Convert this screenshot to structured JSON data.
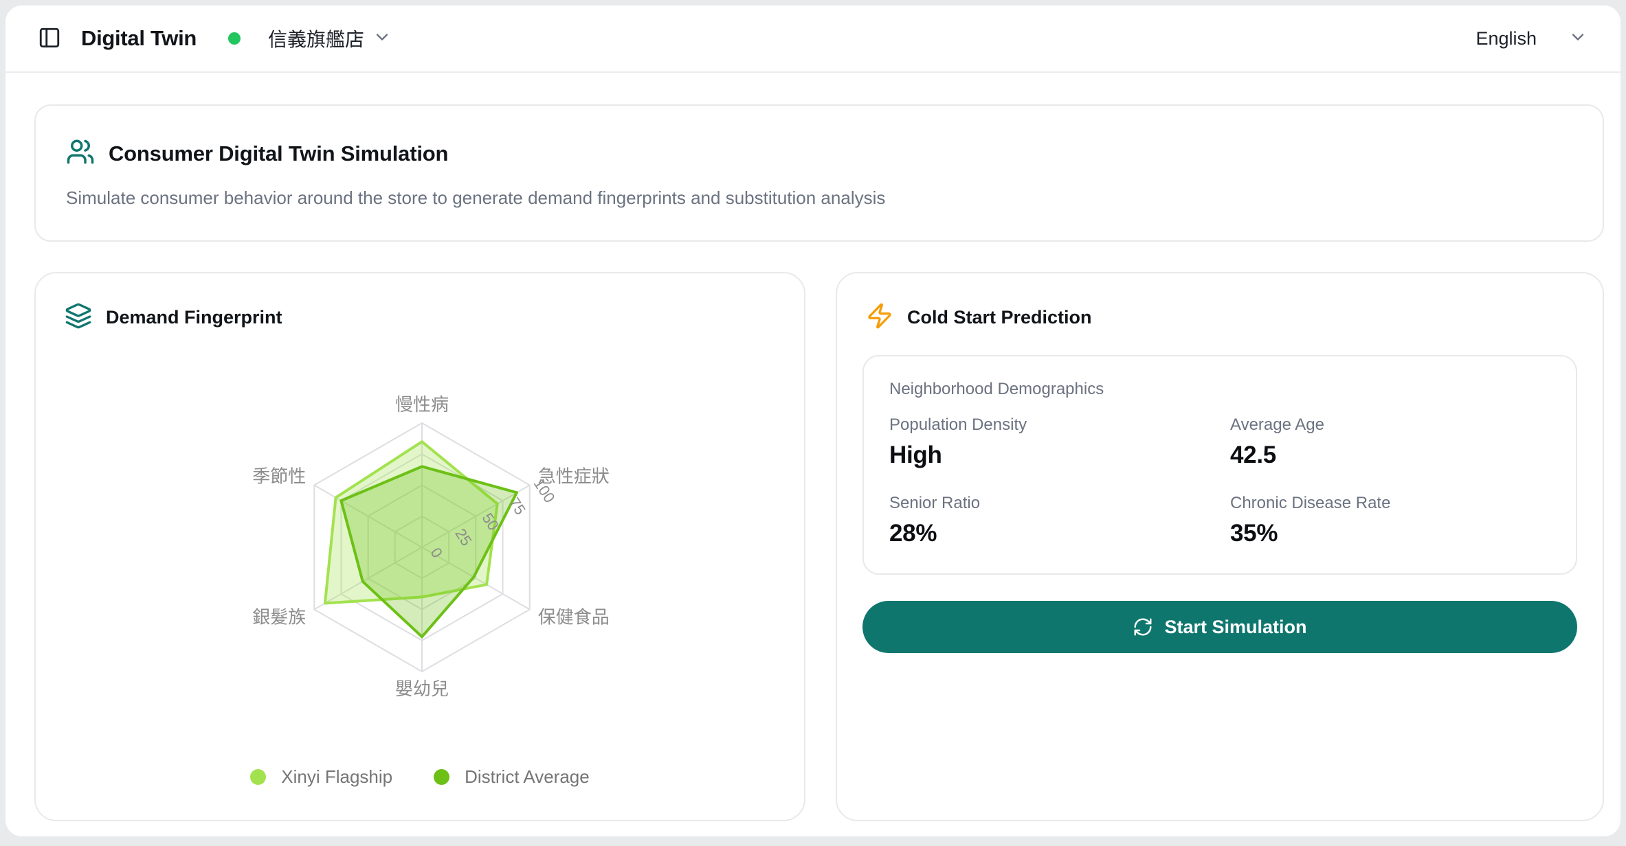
{
  "header": {
    "app_title": "Digital Twin",
    "store_name": "信義旗艦店",
    "language": "English"
  },
  "banner": {
    "title": "Consumer Digital Twin Simulation",
    "subtitle": "Simulate consumer behavior around the store to generate demand fingerprints and substitution analysis"
  },
  "demand_card": {
    "title": "Demand Fingerprint"
  },
  "cold_start_card": {
    "title": "Cold Start Prediction",
    "demographics_title": "Neighborhood Demographics",
    "stats": [
      {
        "label": "Population Density",
        "value": "High"
      },
      {
        "label": "Average Age",
        "value": "42.5"
      },
      {
        "label": "Senior Ratio",
        "value": "28%"
      },
      {
        "label": "Chronic Disease Rate",
        "value": "35%"
      }
    ],
    "button_label": "Start Simulation"
  },
  "chart_data": {
    "type": "radar",
    "axes": [
      "慢性病",
      "急性症狀",
      "保健食品",
      "嬰幼兒",
      "銀髮族",
      "季節性"
    ],
    "max": 100,
    "tick_values": [
      0,
      25,
      50,
      75,
      100
    ],
    "series": [
      {
        "name": "Xinyi Flagship",
        "color": "#a3e24f",
        "values": [
          85,
          70,
          60,
          40,
          90,
          80
        ]
      },
      {
        "name": "District Average",
        "color": "#6cc016",
        "values": [
          65,
          88,
          48,
          72,
          55,
          75
        ]
      }
    ],
    "grid": true,
    "legend_position": "bottom"
  },
  "colors": {
    "accent_teal": "#0f766e",
    "status_green": "#22c55e",
    "zap_amber": "#f59e0b",
    "grid_gray": "#dddee1",
    "label_gray": "#8c8c8c"
  }
}
